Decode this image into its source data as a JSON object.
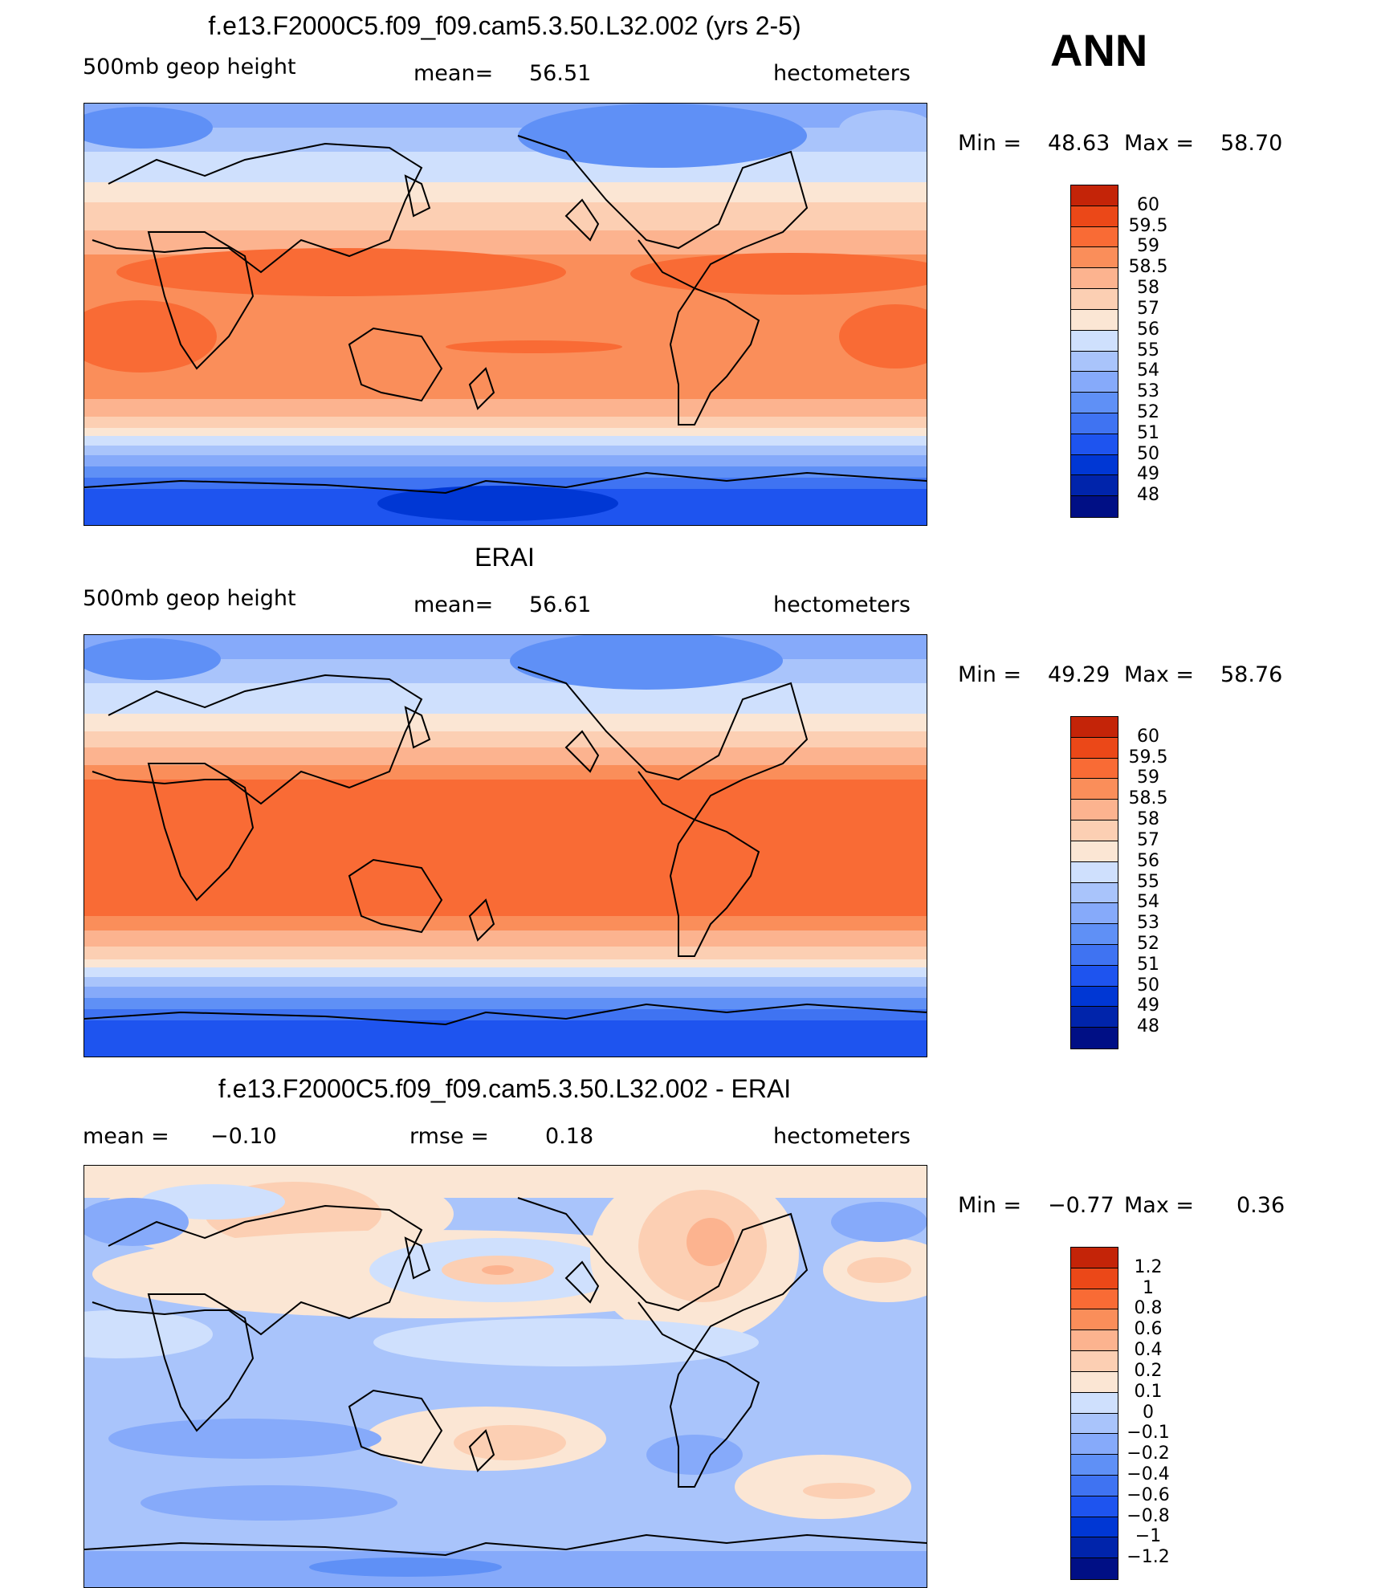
{
  "season": "ANN",
  "palettes": {
    "abs": [
      "#000f85",
      "#0024ab",
      "#0037d4",
      "#1e54ef",
      "#3f73f2",
      "#5f90f6",
      "#86aafa",
      "#a9c4fb",
      "#cfe0fd",
      "#fbe6d4",
      "#fccfb3",
      "#fcb38f",
      "#fa8e5a",
      "#f96b35",
      "#eb4818",
      "#c42408",
      "#8c0a02"
    ],
    "diff": [
      "#000f85",
      "#0024ab",
      "#0037d4",
      "#1e54ef",
      "#3f73f2",
      "#5f90f6",
      "#86aafa",
      "#a9c4fb",
      "#cfe0fd",
      "#fbe6d4",
      "#fccfb3",
      "#fcb38f",
      "#fa8e5a",
      "#f96b35",
      "#eb4818",
      "#c42408",
      "#8c0a02"
    ]
  },
  "panels": [
    {
      "id": "model",
      "title": "f.e13.F2000C5.f09_f09.cam5.3.50.L32.002 (yrs 2-5)",
      "left_label": "500mb  geop  height",
      "mid_label": "mean=",
      "mid_value": "56.51",
      "right_label": "hectometers",
      "min_label": "Min  =",
      "min_value": "48.63",
      "max_label": "Max  =",
      "max_value": "58.70",
      "colorbar_labels": [
        "60",
        "59.5",
        "59",
        "58.5",
        "58",
        "57",
        "56",
        "55",
        "54",
        "53",
        "52",
        "51",
        "50",
        "49",
        "48"
      ]
    },
    {
      "id": "obs",
      "title": "ERAI",
      "left_label": "500mb  geop  height",
      "mid_label": "mean=",
      "mid_value": "56.61",
      "right_label": "hectometers",
      "min_label": "Min  =",
      "min_value": "49.29",
      "max_label": "Max  =",
      "max_value": "58.76",
      "colorbar_labels": [
        "60",
        "59.5",
        "59",
        "58.5",
        "58",
        "57",
        "56",
        "55",
        "54",
        "53",
        "52",
        "51",
        "50",
        "49",
        "48"
      ]
    },
    {
      "id": "diff",
      "title": "f.e13.F2000C5.f09_f09.cam5.3.50.L32.002 - ERAI",
      "left_label": "mean  =",
      "left_value": "−0.10",
      "mid_label": "rmse  =",
      "mid_value": "0.18",
      "right_label": "hectometers",
      "min_label": "Min  =",
      "min_value": "−0.77",
      "max_label": "Max  =",
      "max_value": "0.36",
      "colorbar_labels": [
        "1.2",
        "1",
        "0.8",
        "0.6",
        "0.4",
        "0.2",
        "0.1",
        "0",
        "−0.1",
        "−0.2",
        "−0.4",
        "−0.6",
        "−0.8",
        "−1",
        "−1.2"
      ]
    }
  ]
}
